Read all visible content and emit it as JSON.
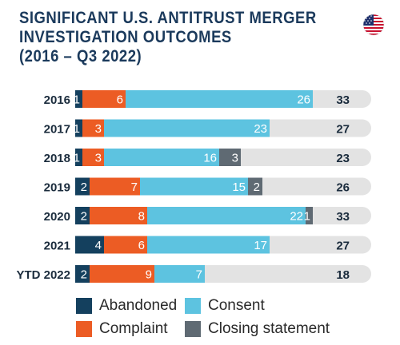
{
  "title_lines": [
    "SIGNIFICANT U.S. ANTITRUST MERGER",
    "INVESTIGATION OUTCOMES",
    "(2016 – Q3 2022)"
  ],
  "flag_icon": "us-flag-icon",
  "colors": {
    "abandoned": "#14405e",
    "complaint": "#ec5c24",
    "consent": "#5dc3e0",
    "closing": "#5f6a73",
    "track": "#e3e3e3",
    "text_dark": "#1b2c3d"
  },
  "legend": {
    "abandoned": "Abandoned",
    "consent": "Consent",
    "complaint": "Complaint",
    "closing": "Closing statement"
  },
  "chart_data": {
    "type": "bar",
    "orientation": "horizontal",
    "stacked": true,
    "categories": [
      "2016",
      "2017",
      "2018",
      "2019",
      "2020",
      "2021",
      "YTD 2022"
    ],
    "series": [
      {
        "name": "Abandoned",
        "key": "abandoned",
        "values": [
          1,
          1,
          1,
          2,
          2,
          4,
          2
        ]
      },
      {
        "name": "Complaint",
        "key": "complaint",
        "values": [
          6,
          3,
          3,
          7,
          8,
          6,
          9
        ]
      },
      {
        "name": "Consent",
        "key": "consent",
        "values": [
          26,
          23,
          16,
          15,
          22,
          17,
          7
        ]
      },
      {
        "name": "Closing statement",
        "key": "closing",
        "values": [
          0,
          0,
          3,
          2,
          1,
          0,
          0
        ]
      }
    ],
    "totals": [
      33,
      27,
      23,
      26,
      33,
      27,
      18
    ],
    "xlim": [
      0,
      40
    ],
    "grid": false,
    "legend_position": "bottom"
  }
}
